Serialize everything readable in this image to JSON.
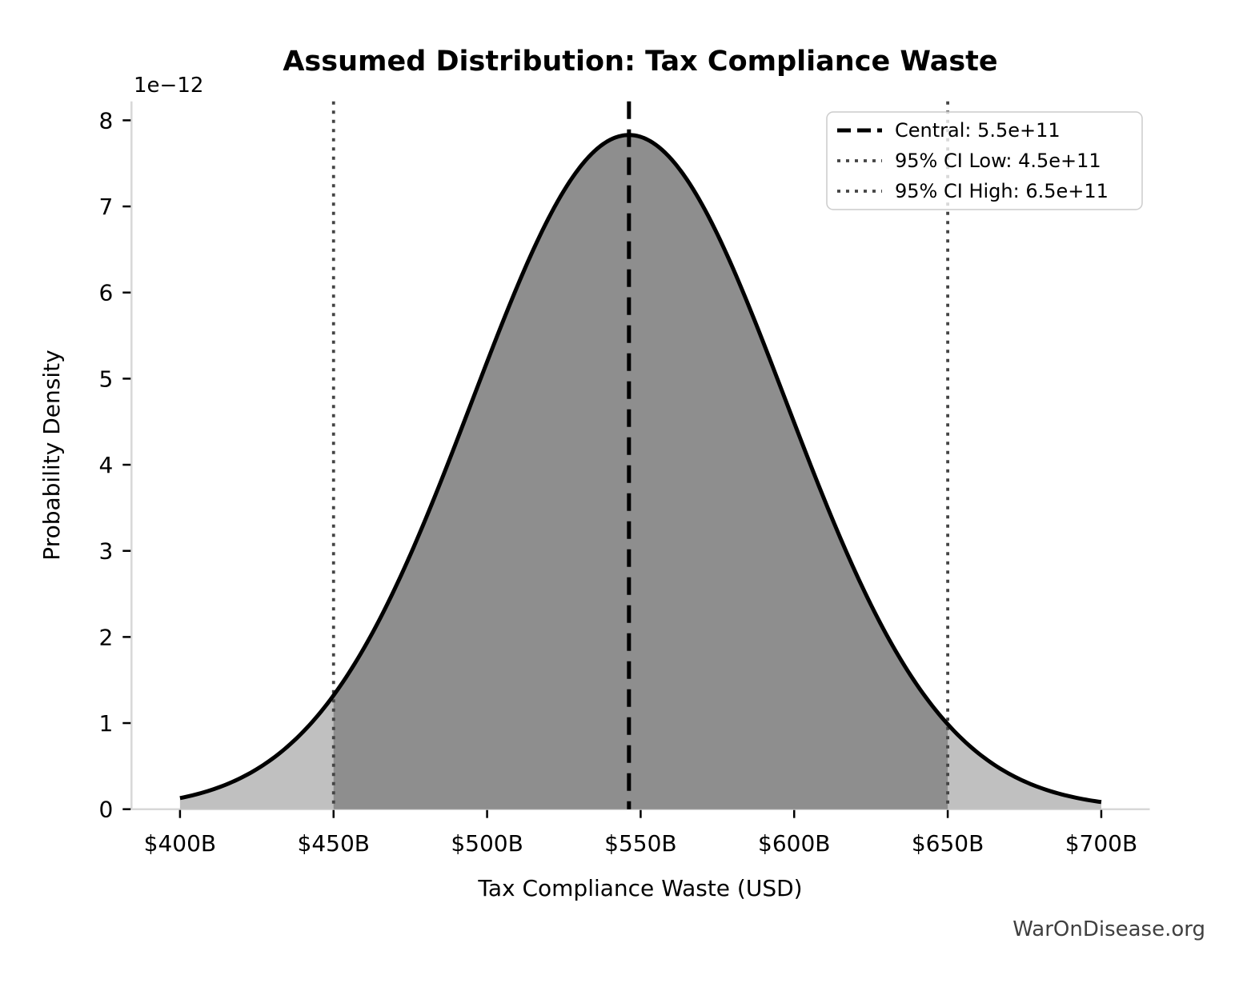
{
  "chart_data": {
    "type": "area",
    "title": "Assumed Distribution: Tax Compliance Waste",
    "xlabel": "Tax Compliance Waste (USD)",
    "ylabel": "Probability Density",
    "y_scale_offset_label": "1e−12",
    "watermark": "WarOnDisease.org",
    "x_tick_values_billion": [
      400,
      450,
      500,
      550,
      600,
      650,
      700
    ],
    "x_tick_labels": [
      "$400B",
      "$450B",
      "$500B",
      "$550B",
      "$600B",
      "$650B",
      "$700B"
    ],
    "y_tick_values": [
      0,
      1,
      2,
      3,
      4,
      5,
      6,
      7,
      8
    ],
    "y_tick_labels": [
      "0",
      "1",
      "2",
      "3",
      "4",
      "5",
      "6",
      "7",
      "8"
    ],
    "xlim_billion": [
      384.2,
      715.8
    ],
    "ylim": [
      0,
      8.22e-12
    ],
    "grid": false,
    "curve": {
      "distribution": "normal",
      "peak_x_billion": 546.2,
      "sigma_billion": 51,
      "peak_density": 7.83e-12,
      "x_range_billion": [
        400,
        700
      ],
      "stroke_color": "#000000"
    },
    "fills": {
      "outer_range_billion": [
        400,
        700
      ],
      "outer_color": "#c0c0c0",
      "inner_range_billion": [
        450,
        650
      ],
      "inner_color": "#8e8e8e"
    },
    "reference_lines": [
      {
        "name": "central",
        "style": "dashed",
        "color": "#000000",
        "x_billion": 546.2,
        "stated_value": "5.5e+11"
      },
      {
        "name": "ci-low",
        "style": "dotted",
        "color": "#444444",
        "x_billion": 450,
        "stated_value": "4.5e+11"
      },
      {
        "name": "ci-high",
        "style": "dotted",
        "color": "#444444",
        "x_billion": 650,
        "stated_value": "6.5e+11"
      }
    ],
    "legend": {
      "position": "upper right",
      "items": [
        {
          "label": "Central: 5.5e+11",
          "style": "dashed",
          "color": "#000000"
        },
        {
          "label": "95% CI Low: 4.5e+11",
          "style": "dotted",
          "color": "#444444"
        },
        {
          "label": "95% CI High: 6.5e+11",
          "style": "dotted",
          "color": "#444444"
        }
      ]
    }
  }
}
